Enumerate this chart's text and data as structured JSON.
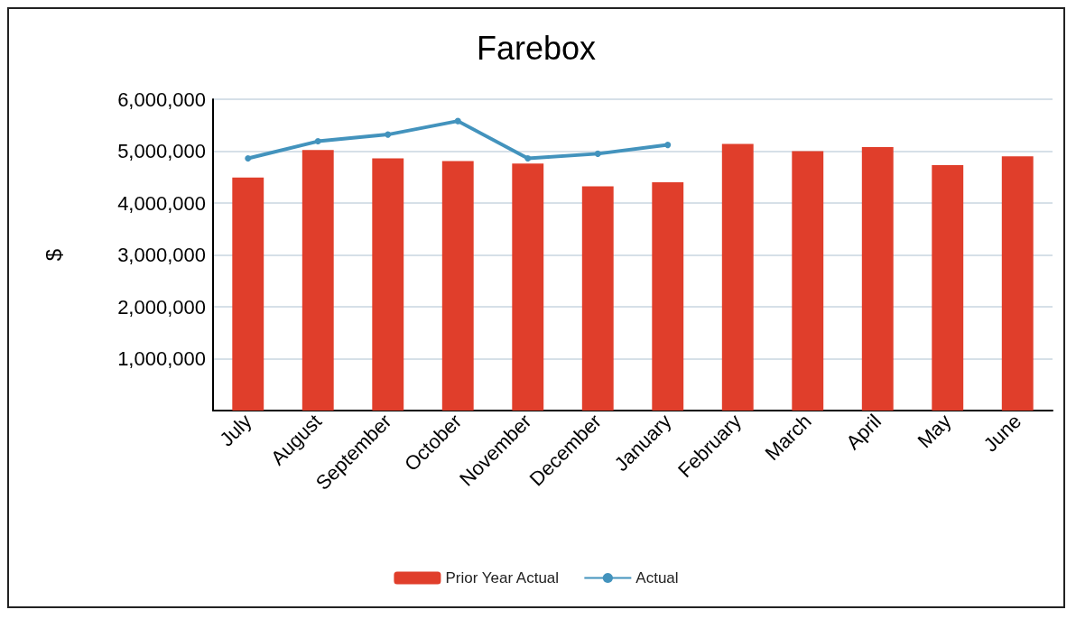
{
  "chart_data": {
    "type": "bar",
    "title": "Farebox",
    "ylabel": "$",
    "categories": [
      "July",
      "August",
      "September",
      "October",
      "November",
      "December",
      "January",
      "February",
      "March",
      "April",
      "May",
      "June"
    ],
    "series": [
      {
        "name": "Prior Year Actual",
        "color": "#e03e2b",
        "values": [
          4490000,
          5020000,
          4860000,
          4810000,
          4760000,
          4320000,
          4400000,
          5140000,
          5000000,
          5080000,
          4730000,
          4900000
        ]
      },
      {
        "name": "Actual",
        "type": "line",
        "color": "#4393bd",
        "marker": "circle",
        "values": [
          4860000,
          5190000,
          5320000,
          5580000,
          4860000,
          4950000,
          5120000,
          null,
          null,
          null,
          null,
          null
        ]
      }
    ],
    "ylim": [
      0,
      6000000
    ],
    "yticks": [
      {
        "value": 0,
        "label": null
      },
      {
        "value": 1000000,
        "label": "1,000,000"
      },
      {
        "value": 2000000,
        "label": "2,000,000"
      },
      {
        "value": 3000000,
        "label": "3,000,000"
      },
      {
        "value": 4000000,
        "label": "4,000,000"
      },
      {
        "value": 5000000,
        "label": "5,000,000"
      },
      {
        "value": 6000000,
        "label": "6,000,000"
      }
    ],
    "grid": "y",
    "legend": "bottom"
  }
}
